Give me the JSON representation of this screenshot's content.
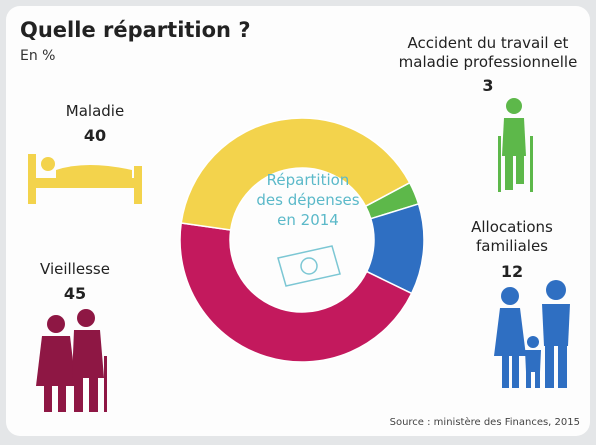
{
  "chart_data": {
    "type": "pie",
    "title": "Quelle répartition ?",
    "subtitle": "En %",
    "center_label": "Répartition des dépenses en 2014",
    "source": "Source : ministère des Finances, 2015",
    "categories": [
      "Accident du travail et maladie professionnelle",
      "Allocations familiales",
      "Vieillesse",
      "Maladie"
    ],
    "values": [
      3,
      12,
      45,
      40
    ],
    "colors": [
      "#5db84a",
      "#2f6fc2",
      "#c3195d",
      "#f3d34c"
    ]
  }
}
